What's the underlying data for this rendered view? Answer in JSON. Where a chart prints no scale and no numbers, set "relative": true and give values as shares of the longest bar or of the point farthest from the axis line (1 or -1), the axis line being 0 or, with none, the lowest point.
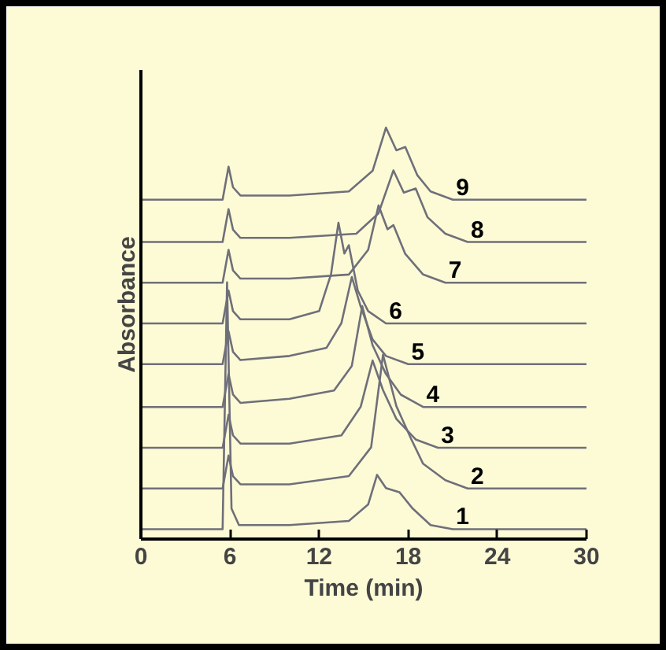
{
  "chart_data": {
    "type": "line",
    "relative": true,
    "xlabel": "Time (min)",
    "ylabel": "Absorbance",
    "xlim": [
      0,
      30
    ],
    "xticks": [
      0,
      6,
      12,
      18,
      24,
      30
    ],
    "grid": false,
    "legend": false,
    "marker": "none",
    "line_style": "solid",
    "series": [
      {
        "name": "1",
        "color": "#6f6f7a",
        "x": [
          0,
          5.5,
          5.8,
          6.1,
          6.6,
          10,
          14,
          15.3,
          15.9,
          16.5,
          17.4,
          18.3,
          19.5,
          21,
          30
        ],
        "values": [
          0.024,
          0.024,
          0.624,
          0.074,
          0.034,
          0.034,
          0.044,
          0.084,
          0.156,
          0.124,
          0.114,
          0.074,
          0.034,
          0.024,
          0.024
        ]
      },
      {
        "name": "2",
        "color": "#6f6f7a",
        "x": [
          0,
          5.5,
          5.9,
          6.2,
          6.7,
          10,
          14,
          15.5,
          16.3,
          17.2,
          18.2,
          19,
          20.5,
          22,
          30
        ],
        "values": [
          0.123,
          0.123,
          0.203,
          0.153,
          0.133,
          0.133,
          0.153,
          0.223,
          0.448,
          0.323,
          0.243,
          0.183,
          0.143,
          0.123,
          0.123
        ]
      },
      {
        "name": "3",
        "color": "#6f6f7a",
        "x": [
          0,
          5.5,
          5.9,
          6.2,
          6.7,
          10,
          13.5,
          14.8,
          15.6,
          16.3,
          17.2,
          18.5,
          20,
          30
        ],
        "values": [
          0.222,
          0.222,
          0.302,
          0.252,
          0.232,
          0.232,
          0.252,
          0.322,
          0.434,
          0.362,
          0.292,
          0.242,
          0.222,
          0.222
        ]
      },
      {
        "name": "4",
        "color": "#6f6f7a",
        "x": [
          0,
          5.5,
          5.9,
          6.2,
          6.7,
          10,
          13,
          14.2,
          14.9,
          15.6,
          16.5,
          17.5,
          19,
          30
        ],
        "values": [
          0.321,
          0.321,
          0.401,
          0.351,
          0.331,
          0.341,
          0.361,
          0.421,
          0.566,
          0.471,
          0.401,
          0.351,
          0.321,
          0.321
        ]
      },
      {
        "name": "5",
        "color": "#6f6f7a",
        "x": [
          0,
          5.5,
          5.9,
          6.2,
          6.7,
          10,
          12.5,
          13.5,
          14.2,
          14.8,
          15.6,
          16.5,
          18,
          30
        ],
        "values": [
          0.425,
          0.425,
          0.505,
          0.455,
          0.435,
          0.445,
          0.465,
          0.525,
          0.637,
          0.565,
          0.485,
          0.445,
          0.425,
          0.425
        ]
      },
      {
        "name": "6",
        "color": "#6f6f7a",
        "x": [
          0,
          5.5,
          5.9,
          6.2,
          6.7,
          10,
          12,
          12.8,
          13.3,
          13.7,
          14.0,
          14.6,
          15.3,
          16.5,
          30
        ],
        "values": [
          0.524,
          0.524,
          0.604,
          0.554,
          0.534,
          0.534,
          0.554,
          0.644,
          0.769,
          0.694,
          0.714,
          0.604,
          0.554,
          0.524,
          0.524
        ]
      },
      {
        "name": "7",
        "color": "#6f6f7a",
        "x": [
          0,
          5.5,
          5.9,
          6.2,
          6.7,
          10,
          14,
          15.3,
          16.0,
          16.6,
          17.0,
          17.8,
          19,
          20.5,
          30
        ],
        "values": [
          0.623,
          0.623,
          0.703,
          0.653,
          0.633,
          0.633,
          0.643,
          0.703,
          0.811,
          0.753,
          0.763,
          0.693,
          0.643,
          0.623,
          0.623
        ]
      },
      {
        "name": "8",
        "color": "#6f6f7a",
        "x": [
          0,
          5.5,
          5.9,
          6.2,
          6.7,
          10,
          14.5,
          16.0,
          17.0,
          17.7,
          18.5,
          19.3,
          20.5,
          22,
          30
        ],
        "values": [
          0.722,
          0.722,
          0.802,
          0.752,
          0.732,
          0.732,
          0.742,
          0.792,
          0.896,
          0.842,
          0.852,
          0.782,
          0.742,
          0.722,
          0.722
        ]
      },
      {
        "name": "9",
        "color": "#6f6f7a",
        "x": [
          0,
          5.5,
          5.9,
          6.2,
          6.7,
          10,
          14,
          15.6,
          16.5,
          17.2,
          17.8,
          18.6,
          19.5,
          21,
          30
        ],
        "values": [
          0.825,
          0.825,
          0.905,
          0.855,
          0.835,
          0.835,
          0.845,
          0.895,
          1.0,
          0.945,
          0.953,
          0.885,
          0.845,
          0.825,
          0.825
        ]
      }
    ]
  }
}
